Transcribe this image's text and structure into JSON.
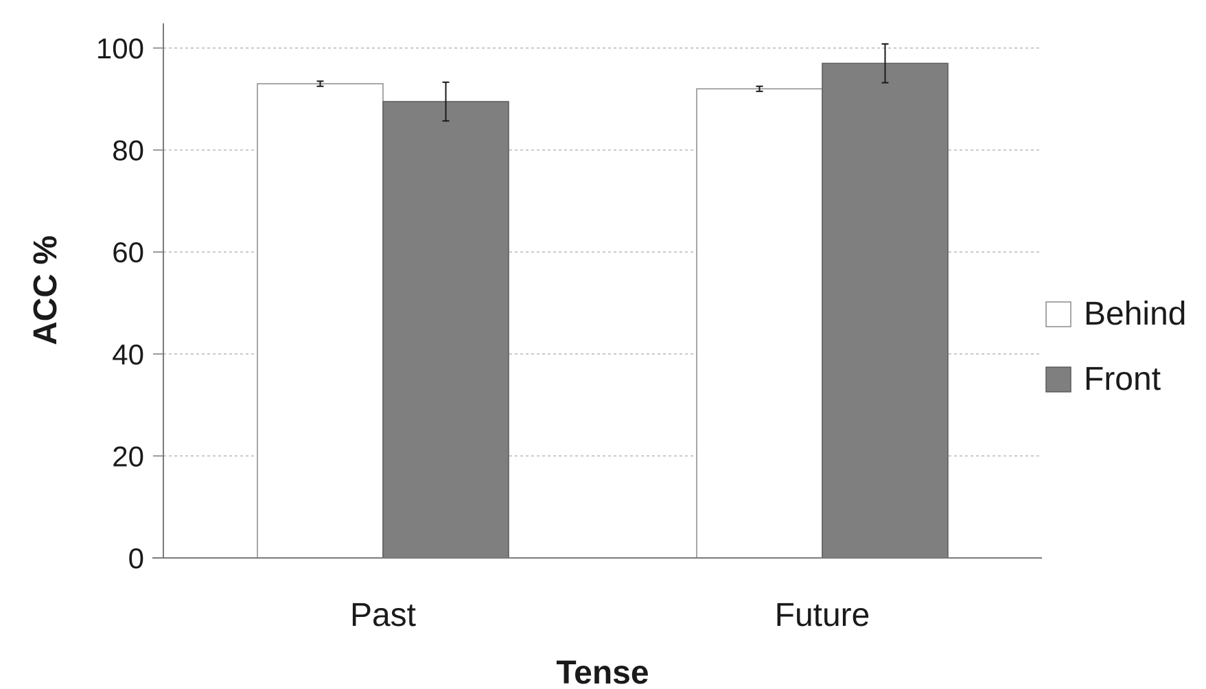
{
  "chart_data": {
    "type": "bar",
    "xlabel": "Tense",
    "ylabel": "ACC %",
    "categories": [
      "Past",
      "Future"
    ],
    "ylim": [
      0,
      100
    ],
    "yticks": [
      0,
      20,
      40,
      60,
      80,
      100
    ],
    "grid": true,
    "legend_position": "right",
    "series": [
      {
        "name": "Behind",
        "values": [
          93.0,
          92.0
        ],
        "errors": [
          0.5,
          0.5
        ],
        "color": "#ffffff"
      },
      {
        "name": "Front",
        "values": [
          89.5,
          97.0
        ],
        "errors": [
          3.8,
          3.8
        ],
        "color": "#7f7f7f"
      }
    ]
  }
}
